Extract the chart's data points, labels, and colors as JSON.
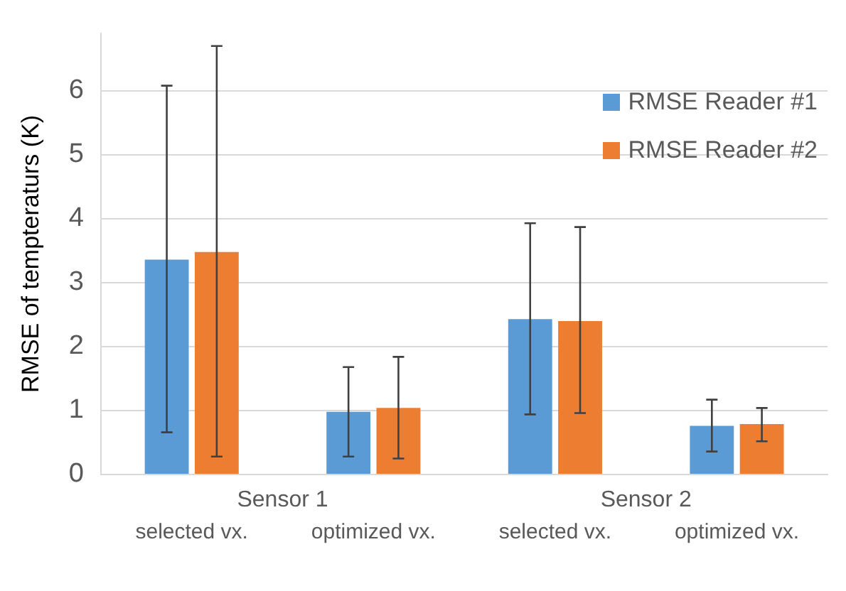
{
  "chart_data": {
    "type": "bar",
    "ylabel": "RMSE of tempteraturs (K)",
    "categories": [
      "selected vx.",
      "optimized vx.",
      "selected vx.",
      "optimized vx."
    ],
    "annotations": [
      "Sensor 1",
      "Sensor 2"
    ],
    "series": [
      {
        "name": "RMSE Reader #1",
        "color": "#5b9bd5",
        "values": [
          3.36,
          0.98,
          2.43,
          0.76
        ],
        "errors": [
          [
            0.66,
            6.08
          ],
          [
            0.28,
            1.68
          ],
          [
            0.94,
            3.93
          ],
          [
            0.36,
            1.17
          ]
        ]
      },
      {
        "name": "RMSE Reader #2",
        "color": "#ed7d31",
        "values": [
          3.48,
          1.04,
          2.4,
          0.79
        ],
        "errors": [
          [
            0.28,
            6.7
          ],
          [
            0.25,
            1.84
          ],
          [
            0.96,
            3.87
          ],
          [
            0.52,
            1.04
          ]
        ]
      }
    ],
    "ylim": [
      0,
      6.9
    ],
    "yticks": [
      0,
      1,
      2,
      3,
      4,
      5,
      6
    ],
    "grid": "y",
    "legend": "top right"
  }
}
